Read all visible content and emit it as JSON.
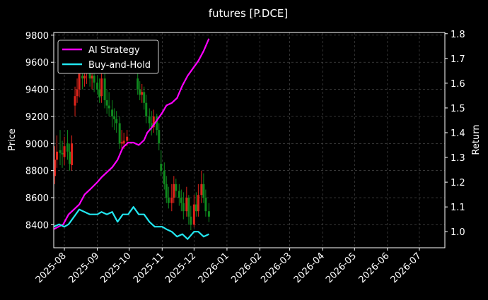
{
  "chart_data": {
    "type": "line",
    "title": "futures [P.DCE]",
    "ylabel_left": "Price",
    "ylabel_right": "Return",
    "xlim": [
      "2025-07-22",
      "2026-07-25"
    ],
    "ylim_left": [
      8230,
      9820
    ],
    "ylim_right": [
      0.935,
      1.805
    ],
    "grid": true,
    "legend_position": "upper left",
    "x_ticks": [
      "2025-08",
      "2025-09",
      "2025-10",
      "2025-11",
      "2025-12",
      "2026-01",
      "2026-02",
      "2026-03",
      "2026-04",
      "2026-05",
      "2026-06",
      "2026-07"
    ],
    "y_ticks_left": [
      8400,
      8600,
      8800,
      9000,
      9200,
      9400,
      9600,
      9800
    ],
    "y_ticks_right": [
      1.0,
      1.1,
      1.2,
      1.3,
      1.4,
      1.5,
      1.6,
      1.7,
      1.8
    ],
    "colors": {
      "background": "#000000",
      "ai_strategy": "#ff00ff",
      "buy_and_hold": "#22e6f0",
      "candle_up": "#e0241b",
      "candle_down": "#0f8a1e",
      "grid": "#555555",
      "axis": "#ffffff"
    },
    "series": [
      {
        "name": "AI Strategy",
        "axis": "right",
        "dates": [
          "2025-07-22",
          "2025-07-31",
          "2025-08-05",
          "2025-08-10",
          "2025-08-15",
          "2025-08-20",
          "2025-08-25",
          "2025-09-01",
          "2025-09-05",
          "2025-09-10",
          "2025-09-15",
          "2025-09-20",
          "2025-09-25",
          "2025-09-30",
          "2025-10-05",
          "2025-10-10",
          "2025-10-15",
          "2025-10-18",
          "2025-10-22",
          "2025-10-27",
          "2025-11-01",
          "2025-11-05",
          "2025-11-10",
          "2025-11-15",
          "2025-11-20",
          "2025-11-25",
          "2025-11-30",
          "2025-12-05",
          "2025-12-10",
          "2025-12-15"
        ],
        "values": [
          1.01,
          1.03,
          1.07,
          1.09,
          1.11,
          1.15,
          1.17,
          1.2,
          1.22,
          1.24,
          1.26,
          1.29,
          1.34,
          1.36,
          1.36,
          1.35,
          1.37,
          1.4,
          1.42,
          1.45,
          1.48,
          1.51,
          1.52,
          1.54,
          1.59,
          1.63,
          1.66,
          1.69,
          1.73,
          1.78
        ]
      },
      {
        "name": "Buy-and-Hold",
        "axis": "right",
        "dates": [
          "2025-07-22",
          "2025-07-27",
          "2025-08-01",
          "2025-08-05",
          "2025-08-10",
          "2025-08-15",
          "2025-08-20",
          "2025-08-25",
          "2025-09-01",
          "2025-09-05",
          "2025-09-10",
          "2025-09-15",
          "2025-09-20",
          "2025-09-25",
          "2025-09-30",
          "2025-10-05",
          "2025-10-10",
          "2025-10-15",
          "2025-10-20",
          "2025-10-25",
          "2025-11-01",
          "2025-11-05",
          "2025-11-10",
          "2025-11-15",
          "2025-11-20",
          "2025-11-25",
          "2025-12-01",
          "2025-12-05",
          "2025-12-10",
          "2025-12-15"
        ],
        "values": [
          1.02,
          1.03,
          1.02,
          1.03,
          1.06,
          1.09,
          1.08,
          1.07,
          1.07,
          1.08,
          1.07,
          1.08,
          1.04,
          1.07,
          1.07,
          1.1,
          1.07,
          1.07,
          1.04,
          1.02,
          1.02,
          1.01,
          1.0,
          0.98,
          0.99,
          0.97,
          1.0,
          1.0,
          0.98,
          0.99
        ]
      }
    ],
    "candles": {
      "axis": "left",
      "dates": [
        "2025-07-23",
        "2025-07-25",
        "2025-07-28",
        "2025-07-30",
        "2025-08-01",
        "2025-08-04",
        "2025-08-06",
        "2025-08-08",
        "2025-08-11",
        "2025-08-13",
        "2025-08-15",
        "2025-08-18",
        "2025-08-20",
        "2025-08-22",
        "2025-08-25",
        "2025-08-27",
        "2025-08-29",
        "2025-09-01",
        "2025-09-03",
        "2025-09-05",
        "2025-09-08",
        "2025-09-10",
        "2025-09-12",
        "2025-09-15",
        "2025-09-17",
        "2025-09-19",
        "2025-09-22",
        "2025-09-24",
        "2025-09-26",
        "2025-09-29",
        "2025-10-09",
        "2025-10-11",
        "2025-10-13",
        "2025-10-15",
        "2025-10-17",
        "2025-10-20",
        "2025-10-22",
        "2025-10-24",
        "2025-10-27",
        "2025-10-29",
        "2025-10-31",
        "2025-11-03",
        "2025-11-05",
        "2025-11-07",
        "2025-11-10",
        "2025-11-12",
        "2025-11-14",
        "2025-11-17",
        "2025-11-19",
        "2025-11-21",
        "2025-11-24",
        "2025-11-26",
        "2025-11-28",
        "2025-12-01",
        "2025-12-03",
        "2025-12-05",
        "2025-12-08",
        "2025-12-10",
        "2025-12-12",
        "2025-12-15"
      ],
      "open": [
        8760,
        8880,
        8950,
        8930,
        8900,
        9000,
        8940,
        8840,
        9280,
        9350,
        9400,
        9500,
        9480,
        9520,
        9540,
        9480,
        9500,
        9450,
        9400,
        9350,
        9480,
        9320,
        9280,
        9250,
        9200,
        9180,
        9150,
        9000,
        9000,
        9020,
        9480,
        9400,
        9360,
        9380,
        9300,
        9200,
        9150,
        9120,
        9200,
        9100,
        8850,
        8800,
        8700,
        8600,
        8560,
        8600,
        8700,
        8650,
        8600,
        8560,
        8500,
        8600,
        8460,
        8400,
        8550,
        8500,
        8620,
        8700,
        8600,
        8500
      ],
      "close": [
        8880,
        8940,
        8930,
        8920,
        8980,
        8940,
        8850,
        9000,
        9350,
        9400,
        9520,
        9480,
        9500,
        9540,
        9480,
        9500,
        9450,
        9400,
        9340,
        9480,
        9320,
        9280,
        9260,
        9200,
        9180,
        9150,
        9000,
        9010,
        9020,
        9050,
        9400,
        9360,
        9380,
        9300,
        9200,
        9150,
        9120,
        9200,
        9100,
        9000,
        8800,
        8700,
        8600,
        8560,
        8600,
        8700,
        8650,
        8600,
        8560,
        8500,
        8600,
        8460,
        8400,
        8550,
        8500,
        8620,
        8700,
        8600,
        8500,
        8460
      ],
      "high": [
        8980,
        9060,
        9100,
        9020,
        9050,
        9100,
        9000,
        9060,
        9420,
        9480,
        9620,
        9580,
        9600,
        9640,
        9600,
        9560,
        9560,
        9500,
        9480,
        9540,
        9520,
        9400,
        9380,
        9320,
        9260,
        9240,
        9200,
        9100,
        9080,
        9100,
        9520,
        9460,
        9440,
        9420,
        9360,
        9260,
        9240,
        9250,
        9220,
        9150,
        8950,
        8860,
        8760,
        8680,
        8700,
        8760,
        8740,
        8700,
        8660,
        8640,
        8680,
        8620,
        8540,
        8620,
        8640,
        8700,
        8800,
        8780,
        8660,
        8560
      ],
      "low": [
        8700,
        8820,
        8840,
        8820,
        8840,
        8880,
        8800,
        8800,
        9200,
        9300,
        9340,
        9400,
        9420,
        9440,
        9420,
        9400,
        9380,
        9360,
        9300,
        9300,
        9260,
        9220,
        9200,
        9120,
        9100,
        9080,
        8960,
        8960,
        8960,
        8980,
        9360,
        9320,
        9300,
        9250,
        9150,
        9100,
        9060,
        9080,
        9060,
        8950,
        8760,
        8660,
        8560,
        8520,
        8500,
        8560,
        8600,
        8540,
        8500,
        8440,
        8460,
        8400,
        8360,
        8380,
        8460,
        8460,
        8560,
        8560,
        8460,
        8420
      ]
    },
    "legend": [
      "AI Strategy",
      "Buy-and-Hold"
    ]
  }
}
